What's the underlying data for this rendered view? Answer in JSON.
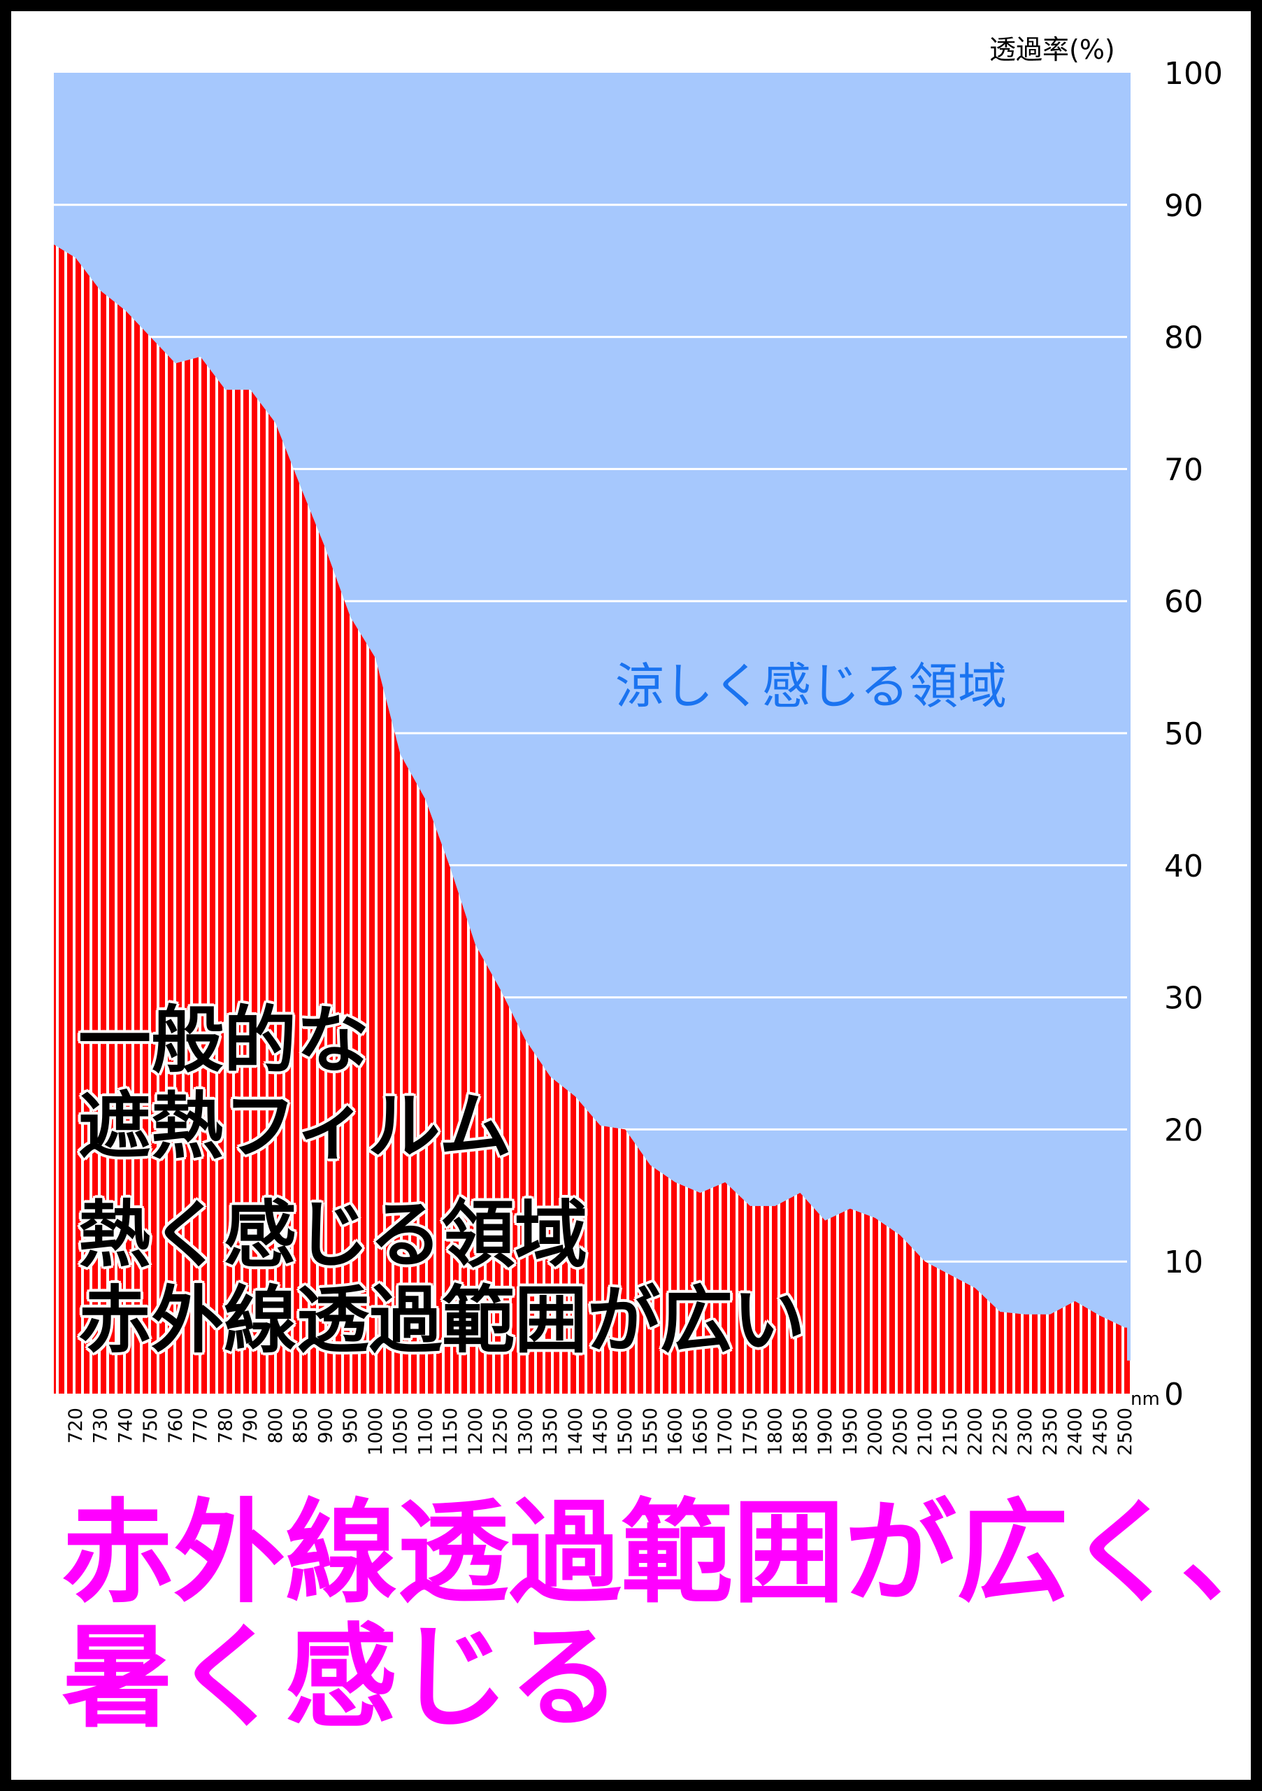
{
  "chart_data": {
    "type": "area",
    "title": "",
    "ylabel": "透過率(%)",
    "xlabel": "nm",
    "ylim": [
      0,
      100
    ],
    "yticks": [
      0,
      10,
      20,
      30,
      40,
      50,
      60,
      70,
      80,
      90,
      100
    ],
    "grid": true,
    "categories": [
      "720",
      "730",
      "740",
      "750",
      "760",
      "770",
      "780",
      "790",
      "800",
      "850",
      "900",
      "950",
      "1000",
      "1050",
      "1100",
      "1150",
      "1200",
      "1250",
      "1300",
      "1350",
      "1400",
      "1450",
      "1500",
      "1550",
      "1600",
      "1650",
      "1700",
      "1750",
      "1800",
      "1850",
      "1900",
      "1950",
      "2000",
      "2050",
      "2100",
      "2150",
      "2200",
      "2250",
      "2300",
      "2350",
      "2400",
      "2450",
      "2500"
    ],
    "series": [
      {
        "name": "一般的な遮熱フィルム",
        "values": [
          86,
          83.5,
          82,
          80,
          78,
          78.5,
          76,
          76,
          73.5,
          68.7,
          64,
          58.8,
          55.7,
          48.4,
          45,
          39.8,
          34,
          30.6,
          26.8,
          24,
          22.5,
          20.3,
          20,
          17.3,
          16,
          15.2,
          16,
          14.2,
          14.2,
          15.2,
          13.1,
          14,
          13.3,
          12,
          10,
          9,
          8,
          6.2,
          6,
          6,
          7,
          5.9,
          5
        ]
      }
    ],
    "annotations": {
      "cool_region": "涼しく感じる領域",
      "hot_region_lines": [
        "一般的な",
        "遮熱フィルム",
        "熱く感じる領域",
        "赤外線透過範囲が広い"
      ]
    },
    "colors": {
      "cool_bg": "#a6c8fd",
      "bar": "#ff0000",
      "cool_text": "#1a73f0",
      "headline": "#ff00ff"
    }
  },
  "headline": {
    "line1": "赤外線透過範囲が広く、",
    "line2": "暑く感じる"
  }
}
